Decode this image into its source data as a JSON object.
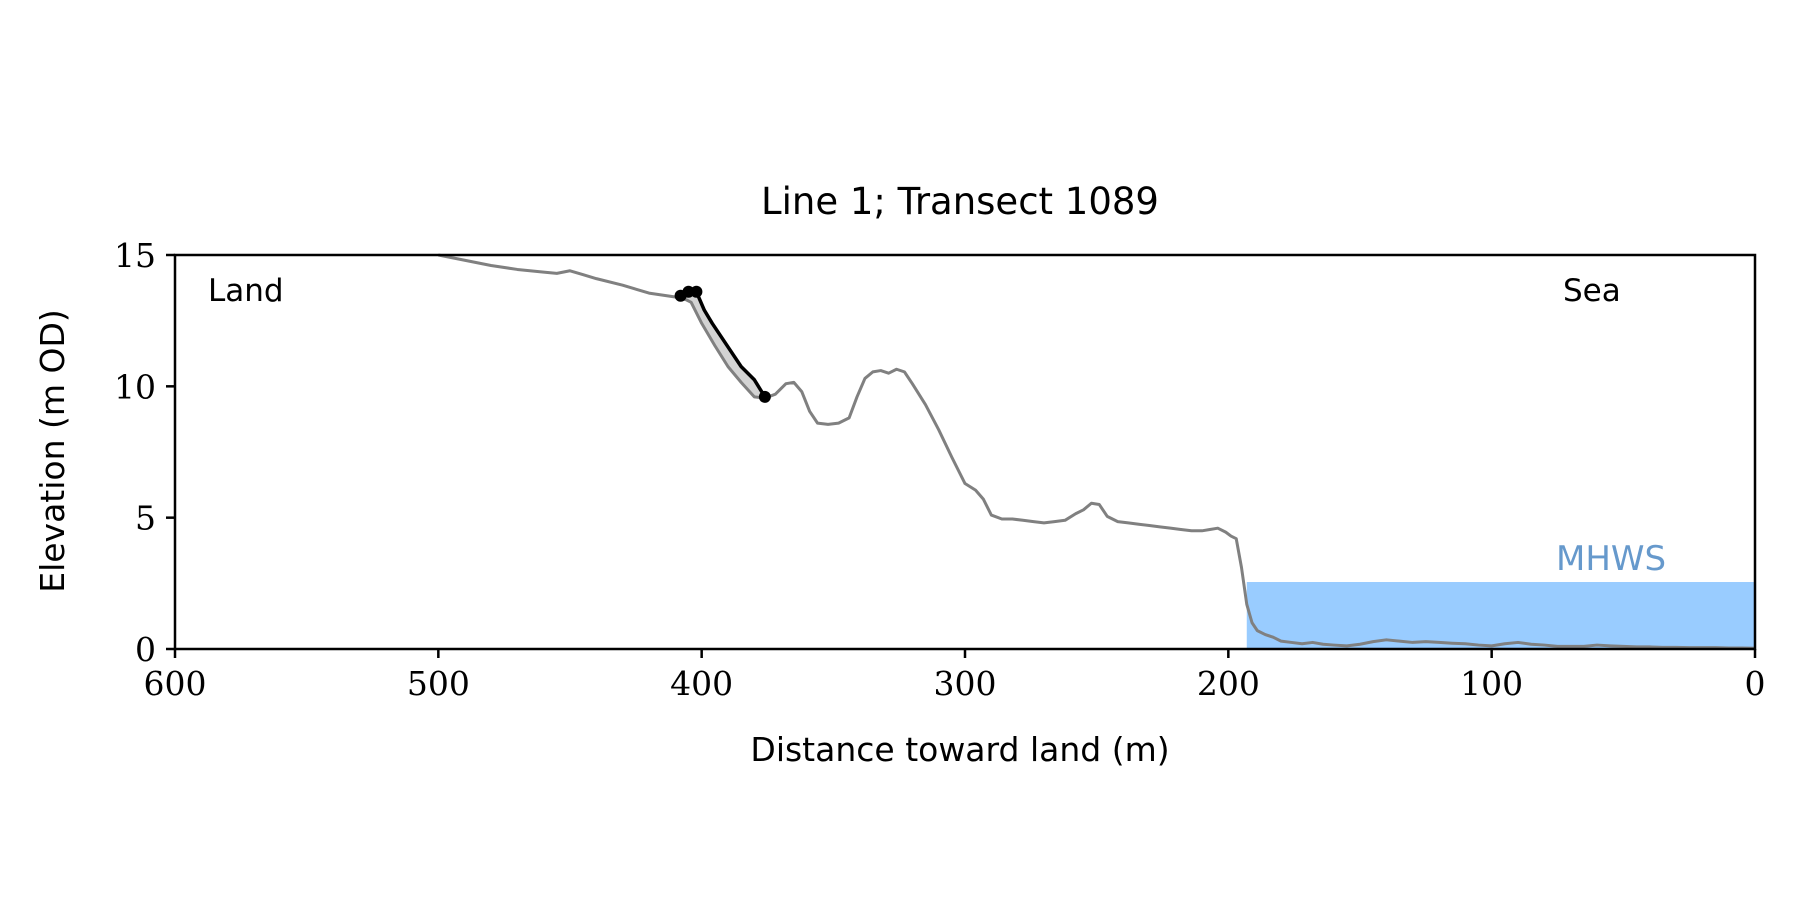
{
  "chart_data": {
    "type": "line",
    "title": "Line 1; Transect 1089",
    "xlabel": "Distance toward land (m)",
    "ylabel": "Elevation (m OD)",
    "xlim": [
      600,
      0
    ],
    "ylim": [
      0,
      15
    ],
    "x_inverted": true,
    "xticks": [
      600,
      500,
      400,
      300,
      200,
      100,
      0
    ],
    "yticks": [
      0,
      5,
      10,
      15
    ],
    "grid": false,
    "annotations": {
      "land": "Land",
      "sea": "Sea",
      "mhws": "MHWS"
    },
    "mhws": {
      "elevation": 2.55,
      "x_from": 193,
      "x_to": 0,
      "color": "#99ccff",
      "label_color": "#6699cc"
    },
    "series": [
      {
        "color": "#808080",
        "x": [
          500,
          490,
          480,
          470,
          460,
          455,
          450,
          445,
          440,
          430,
          420,
          410,
          408,
          406,
          404,
          400,
          395,
          390,
          385,
          380,
          376,
          372,
          368,
          365,
          362,
          359,
          356,
          352,
          348,
          344,
          341,
          338,
          335,
          332,
          329,
          326,
          323,
          320,
          315,
          310,
          305,
          300,
          296,
          293,
          290,
          286,
          282,
          278,
          274,
          270,
          266,
          262,
          258,
          255,
          252,
          249,
          246,
          242,
          238,
          234,
          230,
          226,
          222,
          218,
          214,
          210,
          207,
          204,
          201,
          199,
          197,
          195,
          193,
          191,
          189,
          186,
          183,
          180,
          176,
          172,
          168,
          164,
          160,
          155,
          150,
          145,
          140,
          135,
          130,
          125,
          120,
          115,
          110,
          105,
          100,
          95,
          90,
          85,
          80,
          75,
          70,
          65,
          60,
          55,
          50,
          45,
          40,
          35,
          30,
          25,
          20,
          15,
          10,
          5,
          0
        ],
        "y": [
          15.0,
          14.8,
          14.6,
          14.45,
          14.35,
          14.3,
          14.4,
          14.25,
          14.1,
          13.85,
          13.55,
          13.4,
          13.35,
          13.3,
          13.2,
          12.4,
          11.55,
          10.75,
          10.15,
          9.6,
          9.55,
          9.7,
          10.1,
          10.15,
          9.8,
          9.05,
          8.6,
          8.55,
          8.6,
          8.8,
          9.6,
          10.3,
          10.55,
          10.6,
          10.5,
          10.65,
          10.55,
          10.1,
          9.3,
          8.35,
          7.3,
          6.3,
          6.05,
          5.7,
          5.1,
          4.95,
          4.95,
          4.9,
          4.85,
          4.8,
          4.85,
          4.9,
          5.15,
          5.3,
          5.55,
          5.5,
          5.05,
          4.85,
          4.8,
          4.75,
          4.7,
          4.65,
          4.6,
          4.55,
          4.5,
          4.5,
          4.55,
          4.6,
          4.45,
          4.3,
          4.2,
          3.1,
          1.7,
          1.0,
          0.7,
          0.55,
          0.45,
          0.3,
          0.25,
          0.2,
          0.25,
          0.18,
          0.15,
          0.12,
          0.18,
          0.28,
          0.35,
          0.3,
          0.25,
          0.28,
          0.25,
          0.22,
          0.2,
          0.15,
          0.12,
          0.2,
          0.25,
          0.18,
          0.15,
          0.1,
          0.1,
          0.1,
          0.15,
          0.12,
          0.1,
          0.08,
          0.08,
          0.06,
          0.06,
          0.05,
          0.05,
          0.05,
          0.04,
          0.04,
          0.03
        ]
      },
      {
        "color": "#000000",
        "x": [
          408,
          405,
          402,
          399,
          396,
          390,
          385,
          380,
          376
        ],
        "y": [
          13.45,
          13.6,
          13.6,
          12.9,
          12.4,
          11.5,
          10.75,
          10.25,
          9.6
        ]
      }
    ],
    "points": [
      {
        "x": 408,
        "y": 13.45
      },
      {
        "x": 405,
        "y": 13.6
      },
      {
        "x": 402,
        "y": 13.6
      },
      {
        "x": 376,
        "y": 9.6
      }
    ]
  }
}
